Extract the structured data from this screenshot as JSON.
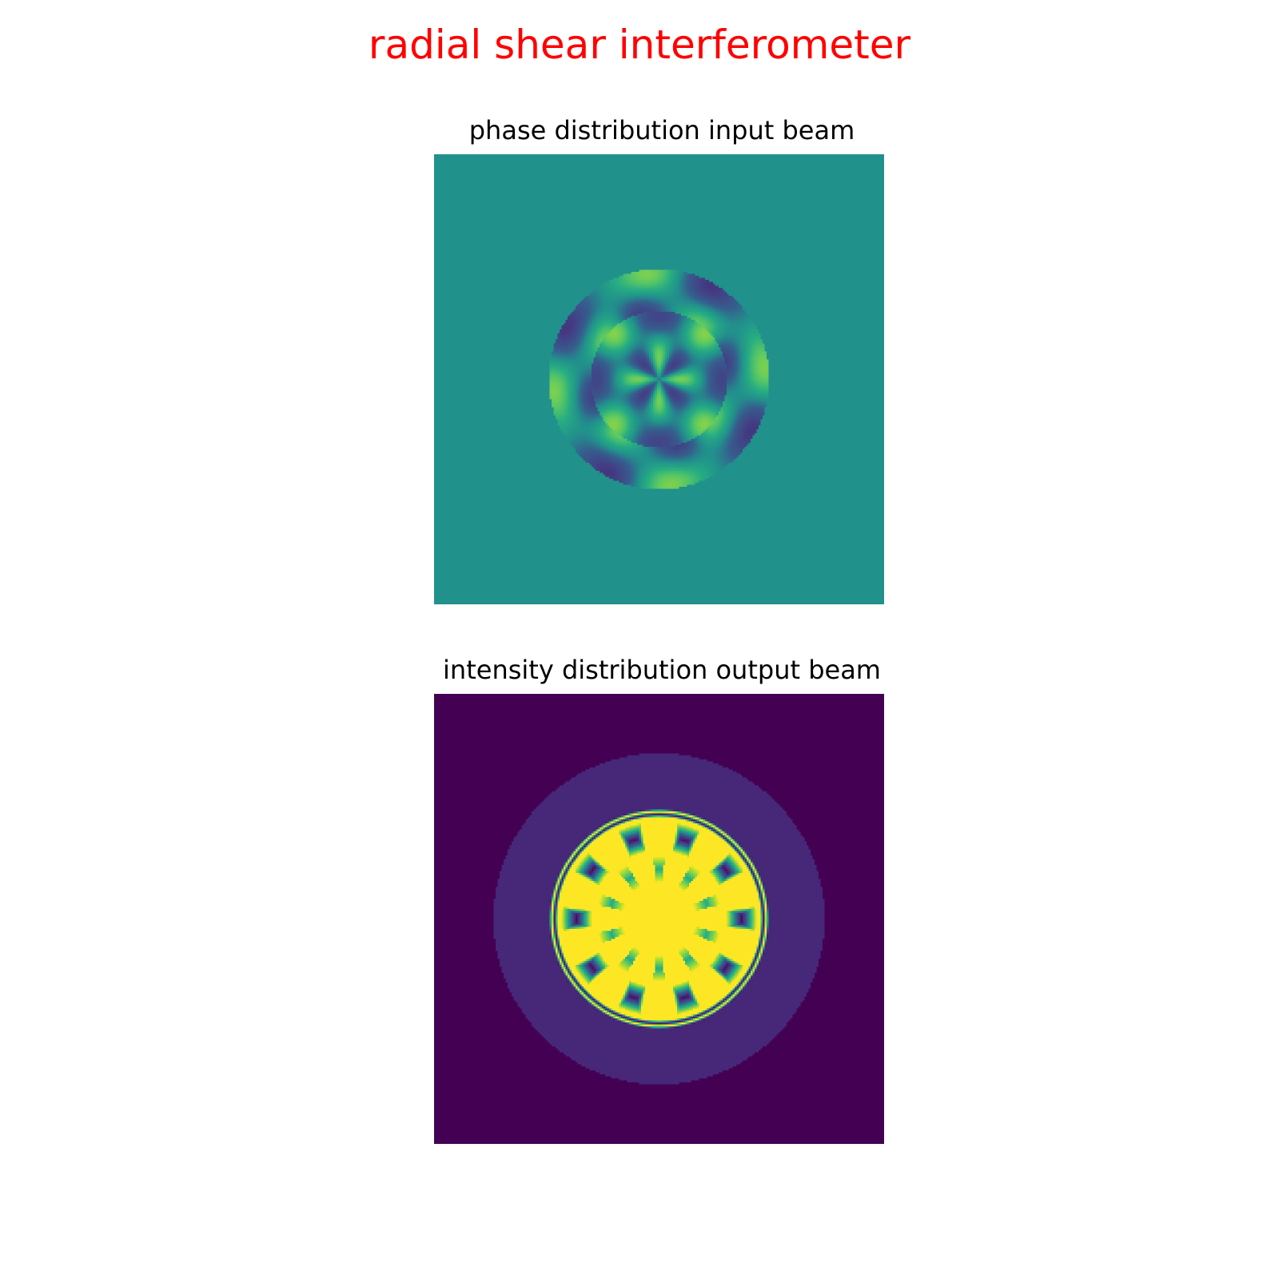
{
  "title": "radial shear interferometer",
  "colors": {
    "title": "#ff0000",
    "colormap": "viridis"
  },
  "chart_data": [
    {
      "type": "heatmap",
      "title": "phase distribution input beam",
      "colormap": "viridis",
      "axes_visible": false,
      "grid": false,
      "background_value": 0.5,
      "pattern": "circular aperture with 8-fold angular phase modulation"
    },
    {
      "type": "heatmap",
      "title": "intensity distribution output beam",
      "colormap": "viridis",
      "axes_visible": false,
      "grid": false,
      "background_value": 0.0,
      "pattern": "bright central disc with 10 dark lobes inside a faint outer halo"
    }
  ]
}
